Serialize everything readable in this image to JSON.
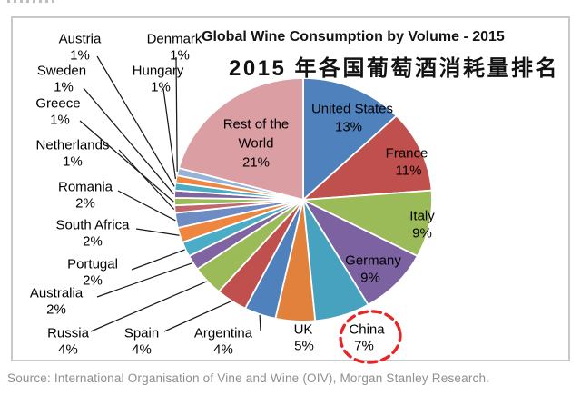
{
  "chart": {
    "title": "Global Wine Consumption by Volume - 2015",
    "subtitle_cn": "2015 年各国葡萄酒消耗量排名",
    "source_note": "Source: International Organisation of Vine and Wine (OIV), Morgan Stanley Research.",
    "highlight": {
      "target": "China",
      "color": "#E52528",
      "shape": "dashed-ellipse"
    },
    "chart_data": {
      "type": "pie",
      "title": "Global Wine Consumption by Volume - 2015",
      "start_angle": "top, clockwise",
      "unit": "percent of global wine consumption by volume",
      "legend": "none (labels on and around slices)",
      "slices": [
        {
          "name": "United States",
          "value": 13,
          "pct": "13%",
          "color": "#4F81BD"
        },
        {
          "name": "France",
          "value": 11,
          "pct": "11%",
          "color": "#C0504D"
        },
        {
          "name": "Italy",
          "value": 9,
          "pct": "9%",
          "color": "#9BBB59"
        },
        {
          "name": "Germany",
          "value": 9,
          "pct": "9%",
          "color": "#7C62A1"
        },
        {
          "name": "China",
          "value": 7,
          "pct": "7%",
          "color": "#46A2BE",
          "highlighted": true
        },
        {
          "name": "UK",
          "value": 5,
          "pct": "5%",
          "color": "#E2813B"
        },
        {
          "name": "Argentina",
          "value": 4,
          "pct": "4%",
          "color": "#4F81BD"
        },
        {
          "name": "Spain",
          "value": 4,
          "pct": "4%",
          "color": "#C0504D"
        },
        {
          "name": "Russia",
          "value": 4,
          "pct": "4%",
          "color": "#9BBB59"
        },
        {
          "name": "Australia",
          "value": 2,
          "pct": "2%",
          "color": "#8064A2"
        },
        {
          "name": "Portugal",
          "value": 2,
          "pct": "2%",
          "color": "#4BACC6"
        },
        {
          "name": "South Africa",
          "value": 2,
          "pct": "2%",
          "color": "#EE8640"
        },
        {
          "name": "Romania",
          "value": 2,
          "pct": "2%",
          "color": "#6D8CC4"
        },
        {
          "name": "Netherlands",
          "value": 1,
          "pct": "1%",
          "color": "#C2666C"
        },
        {
          "name": "Greece",
          "value": 1,
          "pct": "1%",
          "color": "#9BBB59"
        },
        {
          "name": "Sweden",
          "value": 1,
          "pct": "1%",
          "color": "#8064A2"
        },
        {
          "name": "Austria",
          "value": 1,
          "pct": "1%",
          "color": "#4BACC6"
        },
        {
          "name": "Hungary",
          "value": 1,
          "pct": "1%",
          "color": "#EE8640"
        },
        {
          "name": "Denmark",
          "value": 1,
          "pct": "1%",
          "color": "#95B3D7"
        },
        {
          "name": "Rest of the World",
          "value": 21,
          "pct": "21%",
          "color": "#DA9EA3"
        }
      ]
    }
  }
}
